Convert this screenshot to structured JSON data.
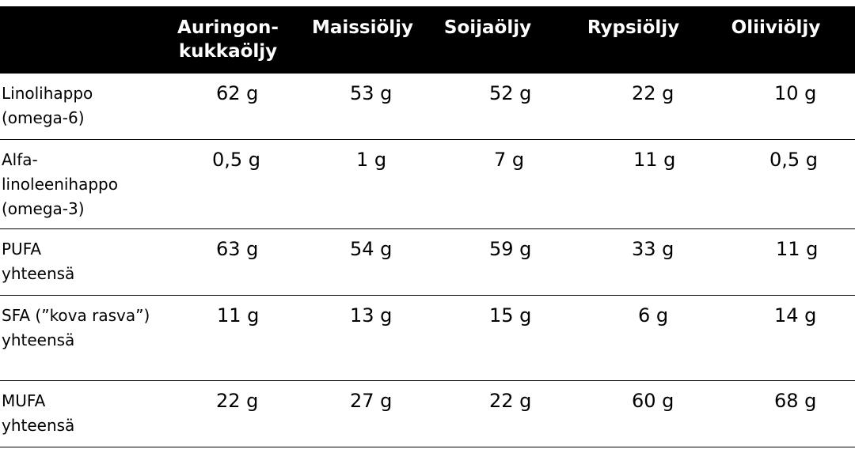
{
  "header": {
    "columns": [
      "Auringon-\nkukkaöljy",
      "Maissiöljy",
      "Soijaöljy",
      "Rypsiöljy",
      "Oliiviöljy"
    ]
  },
  "rows": [
    {
      "label": "Linolihappo\n(omega-6)",
      "values": [
        "62 g",
        "53 g",
        "52 g",
        "22 g",
        "10 g"
      ]
    },
    {
      "label": "Alfa-\nlinoleenihappo\n(omega-3)",
      "values": [
        "0,5 g",
        "1 g",
        "7 g",
        "11 g",
        "0,5 g"
      ]
    },
    {
      "label": "PUFA\nyhteensä",
      "values": [
        "63 g",
        "54 g",
        "59 g",
        "33 g",
        "11 g"
      ]
    },
    {
      "label": "SFA (”kova rasva”)\nyhteensä",
      "values": [
        "11 g",
        "13 g",
        "15 g",
        "6 g",
        "14 g"
      ]
    },
    {
      "label": "MUFA\nyhteensä",
      "values": [
        "22 g",
        "27 g",
        "22 g",
        "60 g",
        "68 g"
      ]
    }
  ]
}
